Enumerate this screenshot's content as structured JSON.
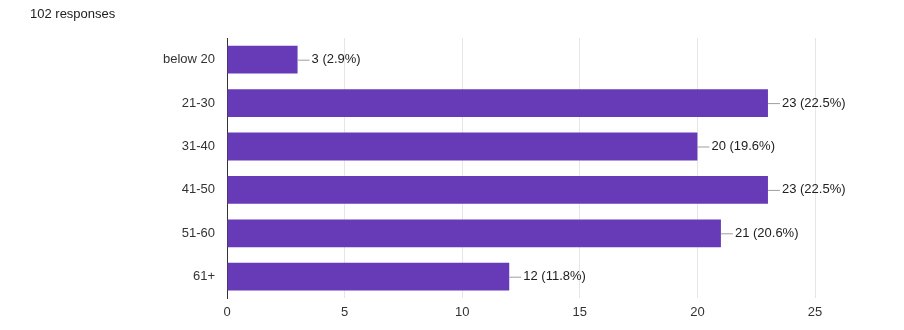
{
  "chart_data": {
    "type": "bar",
    "title": "102 responses",
    "orientation": "horizontal",
    "categories": [
      "below 20",
      "21-30",
      "31-40",
      "41-50",
      "51-60",
      "61+"
    ],
    "values": [
      3,
      23,
      20,
      23,
      21,
      12
    ],
    "value_labels": [
      "3 (2.9%)",
      "23 (22.5%)",
      "20 (19.6%)",
      "23 (22.5%)",
      "21 (20.6%)",
      "12 (11.8%)"
    ],
    "data_labels": true,
    "color": "#673ab7",
    "xlim": [
      0,
      25
    ],
    "xticks": [
      0,
      5,
      10,
      15,
      20,
      25
    ],
    "grid": true
  }
}
